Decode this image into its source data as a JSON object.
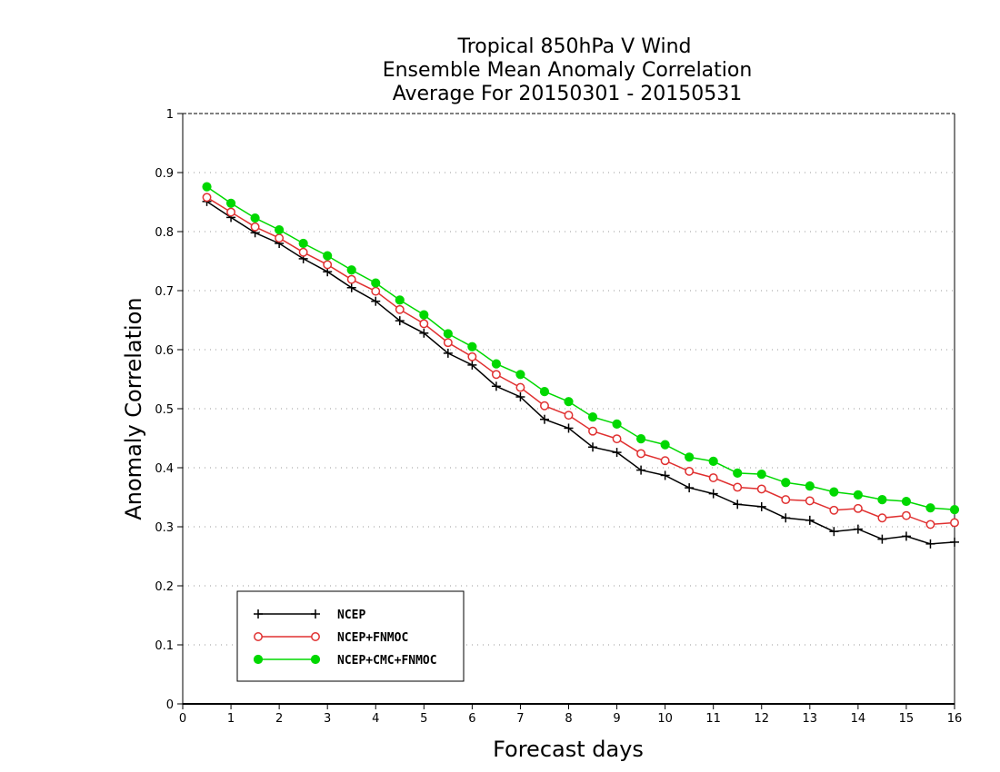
{
  "chart_data": {
    "type": "line",
    "title": [
      "Tropical 850hPa V Wind",
      "Ensemble Mean Anomaly Correlation",
      "Average For 20150301 - 20150531"
    ],
    "xlabel": "Forecast days",
    "ylabel": "Anomaly Correlation",
    "xlim": [
      0,
      16
    ],
    "ylim": [
      0,
      1
    ],
    "xticks": [
      "0",
      "1",
      "2",
      "3",
      "4",
      "5",
      "6",
      "7",
      "8",
      "9",
      "10",
      "11",
      "12",
      "13",
      "14",
      "15",
      "16"
    ],
    "yticks": [
      "0",
      "0.1",
      "0.2",
      "0.3",
      "0.4",
      "0.5",
      "0.6",
      "0.7",
      "0.8",
      "0.9",
      "1"
    ],
    "grid": true,
    "legend_position": "bottom-left",
    "x": [
      0.5,
      1,
      1.5,
      2,
      2.5,
      3,
      3.5,
      4,
      4.5,
      5,
      5.5,
      6,
      6.5,
      7,
      7.5,
      8,
      8.5,
      9,
      9.5,
      10,
      10.5,
      11,
      11.5,
      12,
      12.5,
      13,
      13.5,
      14,
      14.5,
      15,
      15.5,
      16
    ],
    "series": [
      {
        "name": "NCEP",
        "color": "#000000",
        "marker": "plus",
        "values": [
          0.851,
          0.824,
          0.798,
          0.78,
          0.754,
          0.732,
          0.705,
          0.682,
          0.649,
          0.628,
          0.594,
          0.574,
          0.538,
          0.52,
          0.482,
          0.467,
          0.435,
          0.426,
          0.396,
          0.387,
          0.366,
          0.356,
          0.338,
          0.334,
          0.315,
          0.311,
          0.292,
          0.296,
          0.279,
          0.284,
          0.271,
          0.274
        ]
      },
      {
        "name": "NCEP+FNMOC",
        "color": "#e03030",
        "marker": "open-circle",
        "values": [
          0.858,
          0.833,
          0.808,
          0.789,
          0.765,
          0.744,
          0.719,
          0.699,
          0.668,
          0.644,
          0.612,
          0.588,
          0.558,
          0.536,
          0.505,
          0.489,
          0.462,
          0.449,
          0.424,
          0.412,
          0.394,
          0.383,
          0.367,
          0.364,
          0.346,
          0.344,
          0.328,
          0.331,
          0.315,
          0.319,
          0.304,
          0.307
        ]
      },
      {
        "name": "NCEP+CMC+FNMOC",
        "color": "#00d800",
        "marker": "filled-circle",
        "values": [
          0.876,
          0.848,
          0.823,
          0.803,
          0.78,
          0.759,
          0.735,
          0.713,
          0.684,
          0.659,
          0.627,
          0.605,
          0.576,
          0.558,
          0.529,
          0.512,
          0.486,
          0.474,
          0.449,
          0.439,
          0.418,
          0.411,
          0.391,
          0.389,
          0.375,
          0.369,
          0.359,
          0.354,
          0.346,
          0.343,
          0.332,
          0.329
        ]
      }
    ]
  }
}
